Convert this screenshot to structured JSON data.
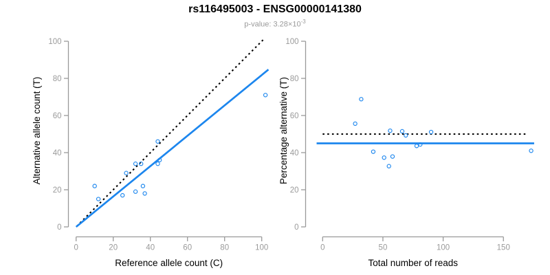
{
  "figure": {
    "title": "rs116495003 - ENSG00000141380",
    "subtitle_prefix": "p-value: 3.28×10",
    "subtitle_exponent": "-3"
  },
  "colors": {
    "point_blue": "#1C86EE",
    "fit_line_blue": "#1C86EE",
    "reference_line_black": "#000000",
    "axis_line_gray": "#999999",
    "tick_label_gray": "#9a9a9a",
    "axis_title_black": "#000000"
  },
  "chart_data": [
    {
      "name": "allele-counts-scatter",
      "type": "scatter",
      "xlabel": "Reference allele count (C)",
      "ylabel": "Alternative allele count (T)",
      "xlim": [
        0,
        100
      ],
      "ylim": [
        0,
        100
      ],
      "xticks": [
        0,
        20,
        40,
        60,
        80,
        100
      ],
      "yticks": [
        0,
        20,
        40,
        60,
        80,
        100
      ],
      "grid": false,
      "legend": null,
      "points": [
        [
          10,
          22
        ],
        [
          12,
          15
        ],
        [
          25,
          17
        ],
        [
          27,
          29
        ],
        [
          32,
          34
        ],
        [
          35,
          34
        ],
        [
          32,
          19
        ],
        [
          36,
          22
        ],
        [
          37,
          18
        ],
        [
          44,
          46
        ],
        [
          44,
          34
        ],
        [
          45,
          36
        ],
        [
          102,
          71
        ]
      ],
      "lines": [
        {
          "name": "identity-line",
          "slope": 1,
          "intercept": 0,
          "style": "dotted",
          "color": "#000000"
        },
        {
          "name": "fit-line",
          "slope": 0.818,
          "intercept": 0,
          "style": "solid",
          "color": "#1C86EE"
        }
      ]
    },
    {
      "name": "percentage-alternative-scatter",
      "type": "scatter",
      "xlabel": "Total number of reads",
      "ylabel": "Percentage alternative (T)",
      "xlim": [
        0,
        150
      ],
      "ylim": [
        0,
        100
      ],
      "xticks": [
        0,
        50,
        100,
        150
      ],
      "yticks": [
        0,
        20,
        40,
        60,
        80,
        100
      ],
      "grid": false,
      "legend": null,
      "points": [
        [
          32,
          68.8
        ],
        [
          27,
          55.6
        ],
        [
          42,
          40.5
        ],
        [
          56,
          51.8
        ],
        [
          66,
          51.5
        ],
        [
          69,
          49.3
        ],
        [
          51,
          37.3
        ],
        [
          58,
          37.9
        ],
        [
          55,
          32.7
        ],
        [
          90,
          51.1
        ],
        [
          78,
          43.6
        ],
        [
          81,
          44.4
        ],
        [
          173,
          41
        ]
      ],
      "lines": [
        {
          "name": "expected-50-percent-line",
          "slope": 0,
          "intercept": 50,
          "style": "dotted",
          "color": "#000000"
        },
        {
          "name": "fit-45-percent-line",
          "slope": 0,
          "intercept": 45,
          "style": "solid",
          "color": "#1C86EE"
        }
      ]
    }
  ]
}
